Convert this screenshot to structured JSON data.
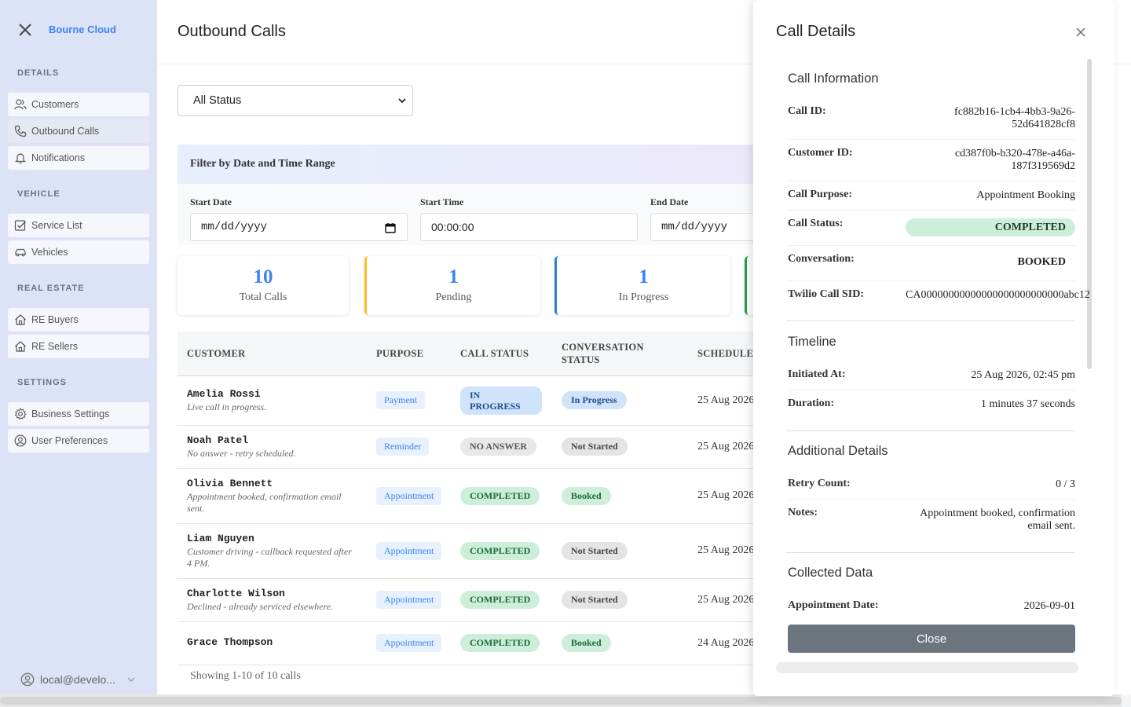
{
  "sidebar": {
    "brand": "Bourne Cloud",
    "sections": {
      "details": "DETAILS",
      "vehicle": "VEHICLE",
      "real_estate": "REAL ESTATE",
      "settings": "SETTINGS"
    },
    "items": {
      "customers": "Customers",
      "outbound_calls": "Outbound Calls",
      "notifications": "Notifications",
      "service_list": "Service List",
      "vehicles": "Vehicles",
      "re_buyers": "RE Buyers",
      "re_sellers": "RE Sellers",
      "business_settings": "Business Settings",
      "user_preferences": "User Preferences"
    },
    "user": "local@develo..."
  },
  "main": {
    "title": "Outbound Calls",
    "status_filter": "All Status",
    "filter": {
      "title": "Filter by Date and Time Range",
      "start_date_label": "Start Date",
      "start_date_value": "mm/dd/yyyy",
      "start_time_label": "Start Time",
      "start_time_value": "00:00:00",
      "end_date_label": "End Date",
      "end_date_value": "mm/dd/yyyy"
    },
    "stats": [
      {
        "value": "10",
        "label": "Total Calls"
      },
      {
        "value": "1",
        "label": "Pending"
      },
      {
        "value": "1",
        "label": "In Progress"
      }
    ],
    "table": {
      "headers": {
        "customer": "CUSTOMER",
        "purpose": "PURPOSE",
        "call_status": "CALL STATUS",
        "conversation_status": "CONVERSATION STATUS",
        "scheduled": "SCHEDULED"
      },
      "rows": [
        {
          "name": "Amelia Rossi",
          "note": "Live call in progress.",
          "purpose": "Payment",
          "call_status": "IN PROGRESS",
          "conversation": "In Progress",
          "scheduled": "25 Aug 2026"
        },
        {
          "name": "Noah Patel",
          "note": "No answer - retry scheduled.",
          "purpose": "Reminder",
          "call_status": "NO ANSWER",
          "conversation": "Not Started",
          "scheduled": "25 Aug 2026"
        },
        {
          "name": "Olivia Bennett",
          "note": "Appointment booked, confirmation email sent.",
          "purpose": "Appointment",
          "call_status": "COMPLETED",
          "conversation": "Booked",
          "scheduled": "25 Aug 2026"
        },
        {
          "name": "Liam Nguyen",
          "note": "Customer driving - callback requested after 4 PM.",
          "purpose": "Appointment",
          "call_status": "COMPLETED",
          "conversation": "Not Started",
          "scheduled": "25 Aug 2026"
        },
        {
          "name": "Charlotte Wilson",
          "note": "Declined - already serviced elsewhere.",
          "purpose": "Appointment",
          "call_status": "COMPLETED",
          "conversation": "Not Started",
          "scheduled": "25 Aug 2026"
        },
        {
          "name": "Grace Thompson",
          "note": "",
          "purpose": "Appointment",
          "call_status": "COMPLETED",
          "conversation": "Booked",
          "scheduled": "24 Aug 2026"
        }
      ]
    },
    "showing": "Showing 1-10 of 10 calls"
  },
  "modal": {
    "title": "Call Details",
    "call_info": {
      "title": "Call Information",
      "call_id_label": "Call ID:",
      "call_id_line1": "fc882b16-1cb4-4bb3-9a26-",
      "call_id_line2": "52d641828cf8",
      "customer_id_label": "Customer ID:",
      "customer_id_line1": "cd387f0b-b320-478e-a46a-",
      "customer_id_line2": "187f319569d2",
      "purpose_label": "Call Purpose:",
      "purpose_value": "Appointment Booking",
      "status_label": "Call Status:",
      "status_value": "COMPLETED",
      "conversation_label": "Conversation:",
      "conversation_value": "BOOKED",
      "sid_label": "Twilio Call SID:",
      "sid_value": "CA00000000000000000000000000abc12"
    },
    "timeline": {
      "title": "Timeline",
      "initiated_label": "Initiated At:",
      "initiated_value": "25 Aug 2026, 02:45 pm",
      "duration_label": "Duration:",
      "duration_value": "1 minutes 37 seconds"
    },
    "additional": {
      "title": "Additional Details",
      "retry_label": "Retry Count:",
      "retry_value": "0 / 3",
      "notes_label": "Notes:",
      "notes_line1": "Appointment booked, confirmation",
      "notes_line2": "email sent."
    },
    "collected": {
      "title": "Collected Data",
      "appt_label": "Appointment Date:",
      "appt_value": "2026-09-01"
    },
    "close_label": "Close"
  }
}
